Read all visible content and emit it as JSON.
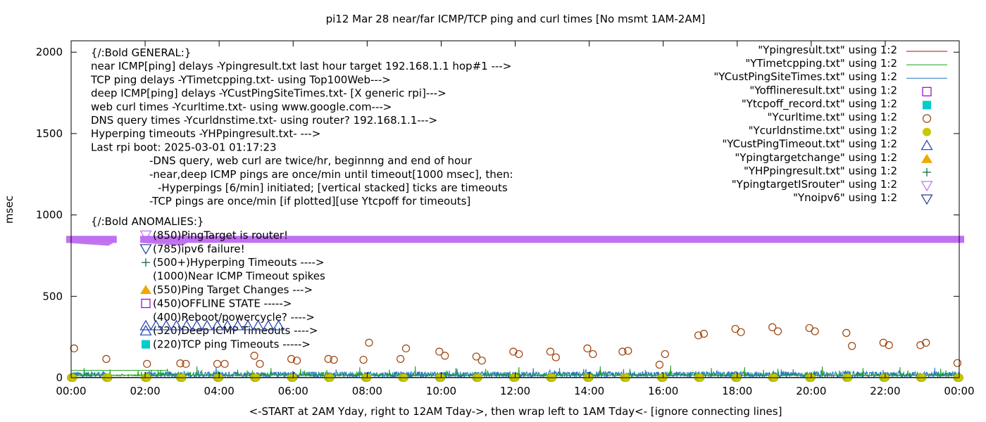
{
  "chart_data": {
    "type": "scatter",
    "title": "pi12 Mar 28  near/far ICMP/TCP ping and curl times [No msmt 1AM-2AM]",
    "xlabel": "<-START at 2AM Yday, right to 12AM Tday->, then wrap left to 1AM Tday<- [ignore connecting lines]",
    "ylabel": "msec",
    "xlim": [
      "00:00",
      "24:00"
    ],
    "ylim": [
      0,
      2070
    ],
    "x_ticks": [
      "00:00",
      "02:00",
      "04:00",
      "06:00",
      "08:00",
      "10:00",
      "12:00",
      "14:00",
      "16:00",
      "18:00",
      "20:00",
      "22:00",
      "00:00"
    ],
    "y_ticks": [
      "0",
      "500",
      "1000",
      "1500",
      "2000"
    ],
    "grid": false,
    "legend_position": "top-right",
    "legend": [
      {
        "label": "\"Ypingresult.txt\" using 1:2",
        "style": "line",
        "color": "#c00000"
      },
      {
        "label": "\"YTimetcpping.txt\" using 1:2",
        "style": "line",
        "color": "#1aa31a"
      },
      {
        "label": "\"YCustPingSiteTimes.txt\" using 1:2",
        "style": "line",
        "color": "#1f77c4"
      },
      {
        "label": "\"Yofflineresult.txt\" using 1:2",
        "style": "open-square",
        "color": "#9400d3"
      },
      {
        "label": "\"Ytcpoff_record.txt\" using 1:2",
        "style": "filled-square",
        "color": "#00cccc"
      },
      {
        "label": "\"Ycurltime.txt\" using 1:2",
        "style": "open-circle",
        "color": "#a0400a"
      },
      {
        "label": "\"Ycurldnstime.txt\" using 1:2",
        "style": "filled-circle",
        "color": "#c8c800"
      },
      {
        "label": "\"YCustPingTimeout.txt\" using 1:2",
        "style": "open-triangle",
        "color": "#1c3fb0"
      },
      {
        "label": "\"Ypingtargetchange\" using 1:2",
        "style": "filled-triangle",
        "color": "#f0a800"
      },
      {
        "label": "\"YHPpingresult.txt\" using 1:2",
        "style": "plus",
        "color": "#006030"
      },
      {
        "label": "\"YpingtargetISrouter\" using 1:2",
        "style": "open-triangle-down",
        "color": "#c070f0"
      },
      {
        "label": "\"Ynoipv6\" using 1:2",
        "style": "open-triangle-down",
        "color": "#1c3f90"
      }
    ],
    "annotations": [
      "{/:Bold GENERAL:}",
      "near ICMP[ping] delays -Ypingresult.txt last hour target 192.168.1.1 hop#1 --->",
      "TCP ping delays -YTimetcpping.txt- using Top100Web--->",
      "deep ICMP[ping] delays -YCustPingSiteTimes.txt- [X generic rpi]--->",
      "web curl times -Ycurltime.txt- using www.google.com--->",
      "DNS query times -Ycurldnstime.txt- using router? 192.168.1.1--->",
      "Hyperping timeouts -YHPpingresult.txt- --->",
      "Last rpi boot: 2025-03-01 01:17:23",
      "-DNS query, web curl are twice/hr, beginnng and end of hour",
      "-near,deep ICMP pings are once/min until timeout[1000 msec], then:",
      "-Hyperpings [6/min] initiated; [vertical stacked] ticks are timeouts",
      "-TCP pings are once/min [if plotted][use Ytcpoff for timeouts]",
      "{/:Bold ANOMALIES:}",
      "(850)PingTarget is router!",
      "(785)ipv6 failure!",
      "(500+)Hyperping Timeouts ---->",
      "(1000)Near ICMP Timeout spikes",
      "(550)Ping Target Changes --->",
      "(450)OFFLINE STATE ----->",
      "(400)Reboot/powercycle? ---->",
      "(320)Deep ICMP Timeouts ---->",
      "(220)TCP ping Timeouts ----->"
    ],
    "series": [
      {
        "name": "YpingtargetISrouter",
        "marker": "open-triangle-down",
        "color": "#c070f0",
        "note_y": 850,
        "x_ranges": [
          [
            0.0,
            1.1
          ],
          [
            2.0,
            24.0
          ]
        ]
      },
      {
        "name": "Ycurltime.txt",
        "marker": "open-circle",
        "color": "#a0400a",
        "x": [
          0.08,
          0.95,
          2.05,
          2.95,
          3.1,
          3.95,
          4.15,
          4.95,
          5.1,
          5.95,
          6.1,
          6.95,
          7.1,
          7.9,
          8.05,
          8.9,
          9.05,
          9.95,
          10.1,
          10.95,
          11.1,
          11.95,
          12.1,
          12.95,
          13.1,
          13.95,
          14.1,
          14.9,
          15.05,
          15.9,
          16.05,
          16.95,
          17.1,
          17.95,
          18.1,
          18.95,
          19.1,
          19.95,
          20.1,
          20.95,
          21.1,
          21.95,
          22.1,
          22.95,
          23.1,
          23.95
        ],
        "values": [
          180,
          115,
          85,
          88,
          85,
          85,
          85,
          135,
          85,
          115,
          105,
          115,
          110,
          110,
          215,
          115,
          180,
          160,
          135,
          130,
          105,
          160,
          145,
          160,
          125,
          180,
          145,
          160,
          165,
          80,
          145,
          260,
          270,
          300,
          280,
          310,
          285,
          305,
          285,
          275,
          195,
          215,
          200,
          200,
          215,
          90
        ]
      },
      {
        "name": "Ycurldnstime.txt",
        "marker": "filled-circle",
        "color": "#c8c800",
        "x": [
          0.0,
          0.05,
          0.95,
          1.0,
          2.0,
          2.05,
          2.95,
          3.0,
          3.95,
          4.0,
          4.95,
          5.0,
          5.95,
          6.0,
          6.95,
          7.0,
          7.95,
          8.0,
          8.95,
          9.0,
          9.95,
          10.0,
          10.95,
          11.0,
          11.95,
          12.0,
          12.95,
          13.0,
          13.95,
          14.0,
          14.95,
          15.0,
          15.95,
          16.0,
          16.95,
          17.0,
          17.95,
          18.0,
          18.95,
          19.0,
          19.95,
          20.0,
          20.95,
          21.0,
          21.95,
          22.0,
          22.95,
          23.0,
          23.95,
          24.0
        ],
        "values": [
          0,
          0,
          0,
          0,
          0,
          0,
          0,
          0,
          0,
          0,
          0,
          0,
          0,
          0,
          0,
          0,
          0,
          0,
          0,
          0,
          0,
          0,
          0,
          0,
          0,
          0,
          0,
          0,
          0,
          0,
          0,
          0,
          0,
          0,
          0,
          0,
          0,
          0,
          0,
          0,
          0,
          0,
          0,
          0,
          0,
          0,
          0,
          0,
          0,
          0
        ]
      },
      {
        "name": "YTimetcpping.txt",
        "marker": "line",
        "color": "#1aa31a",
        "baseline": 15,
        "spikes_x": [
          0.35,
          0.55,
          1.05,
          2.35,
          2.6,
          3.4,
          4.5,
          4.9,
          5.4,
          6.2,
          7.8,
          8.6,
          9.3,
          10.4,
          11.2,
          12.1,
          13.2,
          14.3,
          15.1,
          16.2,
          17.3,
          18.2,
          19.1,
          20.3,
          21.4,
          22.4,
          23.5
        ],
        "spikes_y": [
          60,
          40,
          50,
          45,
          55,
          70,
          50,
          45,
          60,
          55,
          65,
          50,
          70,
          60,
          55,
          65,
          60,
          70,
          55,
          75,
          60,
          65,
          55,
          70,
          60,
          65,
          55
        ]
      },
      {
        "name": "YCustPingSiteTimes.txt",
        "marker": "line",
        "color": "#1f77c4",
        "baseline": 20,
        "noise_amplitude": 25
      },
      {
        "name": "Ypingresult.txt",
        "marker": "line",
        "color": "#c00000",
        "baseline": 2
      }
    ]
  }
}
